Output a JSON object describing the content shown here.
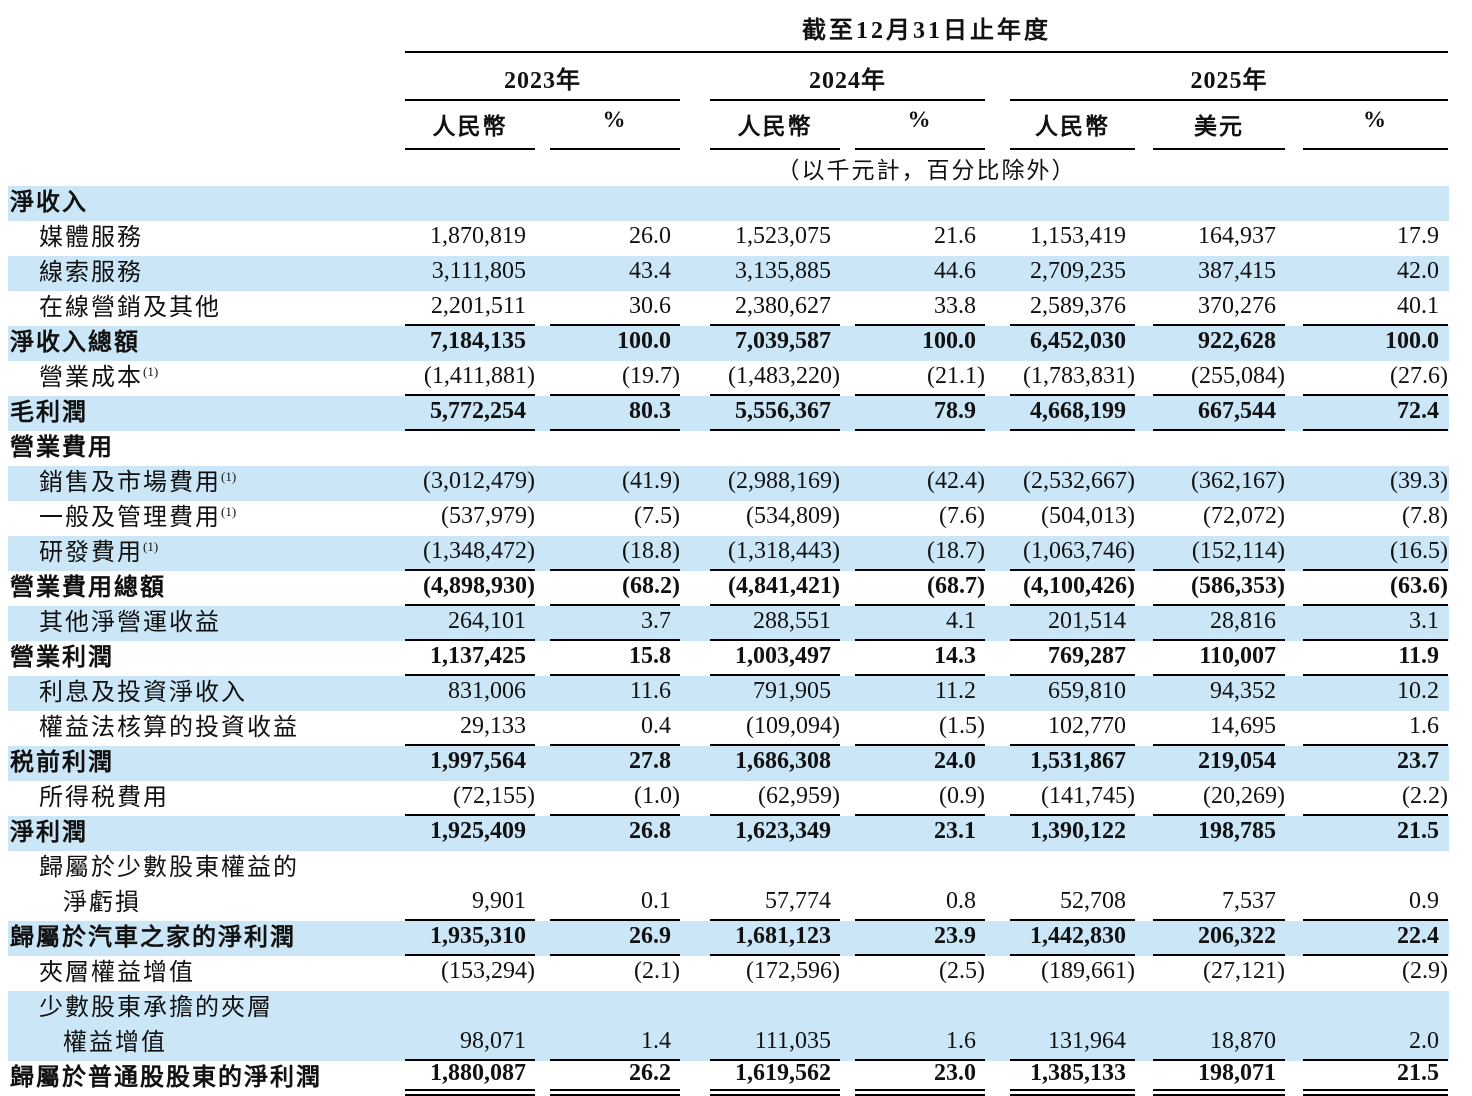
{
  "table": {
    "title": "截至12月31日止年度",
    "subtitle": "（以千元計，百分比除外）",
    "colors": {
      "row_highlight": "#cbe7f7",
      "rule": "#000000",
      "text": "#111111"
    },
    "year_groups": [
      {
        "label": "2023年",
        "columns": [
          "人民幣",
          "%"
        ]
      },
      {
        "label": "2024年",
        "columns": [
          "人民幣",
          "%"
        ]
      },
      {
        "label": "2025年",
        "columns": [
          "人民幣",
          "美元",
          "%"
        ]
      }
    ],
    "rows": [
      {
        "label": "淨收入",
        "bold": true,
        "indent": 0,
        "bg": "blue",
        "underline": "none",
        "values": [
          "",
          "",
          "",
          "",
          "",
          "",
          ""
        ]
      },
      {
        "label": "媒體服務",
        "bold": false,
        "indent": 1,
        "bg": "white",
        "underline": "none",
        "values": [
          "1,870,819",
          "26.0",
          "1,523,075",
          "21.6",
          "1,153,419",
          "164,937",
          "17.9"
        ]
      },
      {
        "label": "線索服務",
        "bold": false,
        "indent": 1,
        "bg": "blue",
        "underline": "none",
        "values": [
          "3,111,805",
          "43.4",
          "3,135,885",
          "44.6",
          "2,709,235",
          "387,415",
          "42.0"
        ]
      },
      {
        "label": "在線營銷及其他",
        "bold": false,
        "indent": 1,
        "bg": "white",
        "underline": "single",
        "values": [
          "2,201,511",
          "30.6",
          "2,380,627",
          "33.8",
          "2,589,376",
          "370,276",
          "40.1"
        ]
      },
      {
        "label": "淨收入總額",
        "bold": true,
        "indent": 0,
        "bg": "blue",
        "underline": "none",
        "values": [
          "7,184,135",
          "100.0",
          "7,039,587",
          "100.0",
          "6,452,030",
          "922,628",
          "100.0"
        ]
      },
      {
        "label": "營業成本",
        "sup": "(1)",
        "bold": false,
        "indent": 1,
        "bg": "white",
        "underline": "single",
        "values": [
          "(1,411,881)",
          "(19.7)",
          "(1,483,220)",
          "(21.1)",
          "(1,783,831)",
          "(255,084)",
          "(27.6)"
        ]
      },
      {
        "label": "毛利潤",
        "bold": true,
        "indent": 0,
        "bg": "blue",
        "underline": "single",
        "values": [
          "5,772,254",
          "80.3",
          "5,556,367",
          "78.9",
          "4,668,199",
          "667,544",
          "72.4"
        ]
      },
      {
        "label": "營業費用",
        "bold": true,
        "indent": 0,
        "bg": "white",
        "underline": "none",
        "values": [
          "",
          "",
          "",
          "",
          "",
          "",
          ""
        ]
      },
      {
        "label": "銷售及市場費用",
        "sup": "(1)",
        "bold": false,
        "indent": 1,
        "bg": "blue",
        "underline": "none",
        "values": [
          "(3,012,479)",
          "(41.9)",
          "(2,988,169)",
          "(42.4)",
          "(2,532,667)",
          "(362,167)",
          "(39.3)"
        ]
      },
      {
        "label": "一般及管理費用",
        "sup": "(1)",
        "bold": false,
        "indent": 1,
        "bg": "white",
        "underline": "none",
        "values": [
          "(537,979)",
          "(7.5)",
          "(534,809)",
          "(7.6)",
          "(504,013)",
          "(72,072)",
          "(7.8)"
        ]
      },
      {
        "label": "研發費用",
        "sup": "(1)",
        "bold": false,
        "indent": 1,
        "bg": "blue",
        "underline": "single",
        "values": [
          "(1,348,472)",
          "(18.8)",
          "(1,318,443)",
          "(18.7)",
          "(1,063,746)",
          "(152,114)",
          "(16.5)"
        ]
      },
      {
        "label": "營業費用總額",
        "bold": true,
        "indent": 0,
        "bg": "white",
        "underline": "single",
        "values": [
          "(4,898,930)",
          "(68.2)",
          "(4,841,421)",
          "(68.7)",
          "(4,100,426)",
          "(586,353)",
          "(63.6)"
        ]
      },
      {
        "label": "其他淨營運收益",
        "bold": false,
        "indent": 1,
        "bg": "blue",
        "underline": "single",
        "values": [
          "264,101",
          "3.7",
          "288,551",
          "4.1",
          "201,514",
          "28,816",
          "3.1"
        ]
      },
      {
        "label": "營業利潤",
        "bold": true,
        "indent": 0,
        "bg": "white",
        "underline": "single",
        "values": [
          "1,137,425",
          "15.8",
          "1,003,497",
          "14.3",
          "769,287",
          "110,007",
          "11.9"
        ]
      },
      {
        "label": "利息及投資淨收入",
        "bold": false,
        "indent": 1,
        "bg": "blue",
        "underline": "none",
        "values": [
          "831,006",
          "11.6",
          "791,905",
          "11.2",
          "659,810",
          "94,352",
          "10.2"
        ]
      },
      {
        "label": "權益法核算的投資收益",
        "bold": false,
        "indent": 1,
        "bg": "white",
        "underline": "single",
        "values": [
          "29,133",
          "0.4",
          "(109,094)",
          "(1.5)",
          "102,770",
          "14,695",
          "1.6"
        ]
      },
      {
        "label": "税前利潤",
        "bold": true,
        "indent": 0,
        "bg": "blue",
        "underline": "none",
        "values": [
          "1,997,564",
          "27.8",
          "1,686,308",
          "24.0",
          "1,531,867",
          "219,054",
          "23.7"
        ]
      },
      {
        "label": "所得税費用",
        "bold": false,
        "indent": 1,
        "bg": "white",
        "underline": "single",
        "values": [
          "(72,155)",
          "(1.0)",
          "(62,959)",
          "(0.9)",
          "(141,745)",
          "(20,269)",
          "(2.2)"
        ]
      },
      {
        "label": "淨利潤",
        "bold": true,
        "indent": 0,
        "bg": "blue",
        "underline": "none",
        "values": [
          "1,925,409",
          "26.8",
          "1,623,349",
          "23.1",
          "1,390,122",
          "198,785",
          "21.5"
        ]
      },
      {
        "label_lines": [
          "歸屬於少數股東權益的",
          "淨虧損"
        ],
        "bold": false,
        "indent": 1,
        "indent2": 2,
        "bg": "white",
        "underline": "single",
        "values": [
          "9,901",
          "0.1",
          "57,774",
          "0.8",
          "52,708",
          "7,537",
          "0.9"
        ]
      },
      {
        "label": "歸屬於汽車之家的淨利潤",
        "bold": true,
        "indent": 0,
        "bg": "blue",
        "underline": "single",
        "values": [
          "1,935,310",
          "26.9",
          "1,681,123",
          "23.9",
          "1,442,830",
          "206,322",
          "22.4"
        ]
      },
      {
        "label": "夾層權益增值",
        "bold": false,
        "indent": 1,
        "bg": "white",
        "underline": "none",
        "values": [
          "(153,294)",
          "(2.1)",
          "(172,596)",
          "(2.5)",
          "(189,661)",
          "(27,121)",
          "(2.9)"
        ]
      },
      {
        "label_lines": [
          "少數股東承擔的夾層",
          "權益增值"
        ],
        "bold": false,
        "indent": 1,
        "indent2": 2,
        "bg": "blue",
        "underline": "single",
        "values": [
          "98,071",
          "1.4",
          "111,035",
          "1.6",
          "131,964",
          "18,870",
          "2.0"
        ]
      },
      {
        "label": "歸屬於普通股股東的淨利潤",
        "bold": true,
        "indent": 0,
        "bg": "white",
        "underline": "double",
        "values": [
          "1,880,087",
          "26.2",
          "1,619,562",
          "23.0",
          "1,385,133",
          "198,071",
          "21.5"
        ]
      }
    ]
  }
}
